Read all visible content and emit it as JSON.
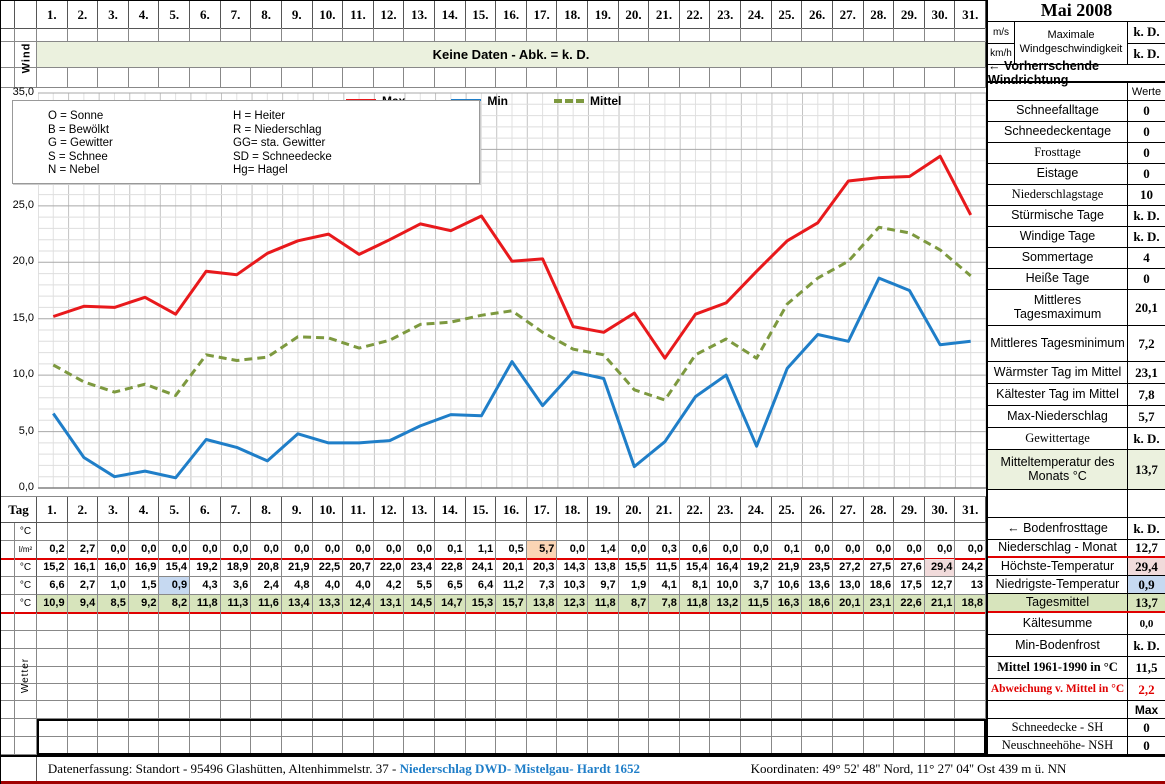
{
  "title": "Mai 2008",
  "days": [
    "1.",
    "2.",
    "3.",
    "4.",
    "5.",
    "6.",
    "7.",
    "8.",
    "9.",
    "10.",
    "11.",
    "12.",
    "13.",
    "14.",
    "15.",
    "16.",
    "17.",
    "18.",
    "19.",
    "20.",
    "21.",
    "22.",
    "23.",
    "24.",
    "25.",
    "26.",
    "27.",
    "28.",
    "29.",
    "30.",
    "31."
  ],
  "wind": {
    "row_label": "Wind",
    "banner": "Keine Daten - Abk. = k. D.",
    "unit_ms": "m/s",
    "unit_kmh": "km/h",
    "max_label": "Maximale Windgeschwindigkeit",
    "max_ms": "k. D.",
    "max_kmh": "k. D.",
    "direction_label": "← Vorherrschende Windrichtung"
  },
  "chart": {
    "y_ticks": [
      "35,0",
      "30,0",
      "25,0",
      "20,0",
      "15,0",
      "10,0",
      "5,0",
      "0,0"
    ],
    "weather_legend": [
      "O = Sonne",
      "H = Heiter",
      "B = Bewölkt",
      "R = Niederschlag",
      "G = Gewitter",
      "GG= sta. Gewitter",
      "S = Schnee",
      "SD = Schneedecke",
      "N = Nebel",
      "Hg= Hagel"
    ]
  },
  "chart_data": {
    "type": "line",
    "x": [
      1,
      2,
      3,
      4,
      5,
      6,
      7,
      8,
      9,
      10,
      11,
      12,
      13,
      14,
      15,
      16,
      17,
      18,
      19,
      20,
      21,
      22,
      23,
      24,
      25,
      26,
      27,
      28,
      29,
      30,
      31
    ],
    "ylim": [
      0,
      35
    ],
    "xlabel": "Tag",
    "ylabel": "°C",
    "grid": true,
    "legend_position": "top",
    "series": [
      {
        "name": "Max",
        "color": "#e8191c",
        "dash": false,
        "values": [
          15.2,
          16.1,
          16.0,
          16.9,
          15.4,
          19.2,
          18.9,
          20.8,
          21.9,
          22.5,
          20.7,
          22.0,
          23.4,
          22.8,
          24.1,
          20.1,
          20.3,
          14.3,
          13.8,
          15.5,
          11.5,
          15.4,
          16.4,
          19.2,
          21.9,
          23.5,
          27.2,
          27.5,
          27.6,
          29.4,
          24.2
        ]
      },
      {
        "name": "Min",
        "color": "#1f7ec8",
        "dash": false,
        "values": [
          6.6,
          2.7,
          1.0,
          1.5,
          0.9,
          4.3,
          3.6,
          2.4,
          4.8,
          4.0,
          4.0,
          4.2,
          5.5,
          6.5,
          6.4,
          11.2,
          7.3,
          10.3,
          9.7,
          1.9,
          4.1,
          8.1,
          10.0,
          3.7,
          10.6,
          13.6,
          13.0,
          18.6,
          17.5,
          12.7,
          13.0
        ]
      },
      {
        "name": "Mittel",
        "color": "#7d993f",
        "dash": true,
        "values": [
          10.9,
          9.4,
          8.5,
          9.2,
          8.2,
          11.8,
          11.3,
          11.6,
          13.4,
          13.3,
          12.4,
          13.1,
          14.5,
          14.7,
          15.3,
          15.7,
          13.8,
          12.3,
          11.8,
          8.7,
          7.8,
          11.8,
          13.2,
          11.5,
          16.3,
          18.6,
          20.1,
          23.1,
          22.6,
          21.1,
          18.8
        ]
      },
      {
        "name": "Niederschlag l/m²",
        "color": null,
        "dash": false,
        "chart_hidden": true,
        "values": [
          0.2,
          2.7,
          0,
          0,
          0,
          0,
          0,
          0,
          0,
          0,
          0,
          0,
          0,
          0.1,
          1.1,
          0.5,
          5.7,
          0,
          1.4,
          0,
          0.3,
          0.6,
          0,
          0,
          0.1,
          0,
          0,
          0,
          0,
          0,
          0
        ]
      }
    ]
  },
  "table": {
    "tag_label": "Tag",
    "wetter_label": "Wetter",
    "rows": [
      {
        "label": "°C",
        "values": [
          "",
          "",
          "",
          "",
          "",
          "",
          "",
          "",
          "",
          "",
          "",
          "",
          "",
          "",
          "",
          "",
          "",
          "",
          "",
          "",
          "",
          "",
          "",
          "",
          "",
          "",
          "",
          "",
          "",
          "",
          ""
        ]
      },
      {
        "label": "l/m²",
        "redline": true,
        "values": [
          "0,2",
          "2,7",
          "0,0",
          "0,0",
          "0,0",
          "0,0",
          "0,0",
          "0,0",
          "0,0",
          "0,0",
          "0,0",
          "0,0",
          "0,0",
          "0,1",
          "1,1",
          "0,5",
          "5,7",
          "0,0",
          "1,4",
          "0,0",
          "0,3",
          "0,6",
          "0,0",
          "0,0",
          "0,1",
          "0,0",
          "0,0",
          "0,0",
          "0,0",
          "0,0",
          "0,0"
        ],
        "highlight": {
          "16": "#fbd5b5"
        }
      },
      {
        "label": "°C",
        "values": [
          "15,2",
          "16,1",
          "16,0",
          "16,9",
          "15,4",
          "19,2",
          "18,9",
          "20,8",
          "21,9",
          "22,5",
          "20,7",
          "22,0",
          "23,4",
          "22,8",
          "24,1",
          "20,1",
          "20,3",
          "14,3",
          "13,8",
          "15,5",
          "11,5",
          "15,4",
          "16,4",
          "19,2",
          "21,9",
          "23,5",
          "27,2",
          "27,5",
          "27,6",
          "29,4",
          "24,2"
        ],
        "highlight": {
          "29": "#f1dbdb"
        }
      },
      {
        "label": "°C",
        "values": [
          "6,6",
          "2,7",
          "1,0",
          "1,5",
          "0,9",
          "4,3",
          "3,6",
          "2,4",
          "4,8",
          "4,0",
          "4,0",
          "4,2",
          "5,5",
          "6,5",
          "6,4",
          "11,2",
          "7,3",
          "10,3",
          "9,7",
          "1,9",
          "4,1",
          "8,1",
          "10,0",
          "3,7",
          "10,6",
          "13,6",
          "13,0",
          "18,6",
          "17,5",
          "12,7",
          "13"
        ],
        "highlight": {
          "4": "#c6d9f1"
        }
      },
      {
        "label": "°C",
        "redline": true,
        "rowbg": "#d7e4bc",
        "values": [
          "10,9",
          "9,4",
          "8,5",
          "9,2",
          "8,2",
          "11,8",
          "11,3",
          "11,6",
          "13,4",
          "13,3",
          "12,4",
          "13,1",
          "14,5",
          "14,7",
          "15,3",
          "15,7",
          "13,8",
          "12,3",
          "11,8",
          "8,7",
          "7,8",
          "11,8",
          "13,2",
          "11,5",
          "16,3",
          "18,6",
          "20,1",
          "23,1",
          "22,6",
          "21,1",
          "18,8"
        ]
      }
    ]
  },
  "sidebar": {
    "werte_header": "Werte",
    "rows": [
      {
        "label": "Schneefalltage",
        "value": "0"
      },
      {
        "label": "Schneedeckentage",
        "value": "0"
      },
      {
        "label": "Frosttage",
        "value": "0",
        "serif": true
      },
      {
        "label": "Eistage",
        "value": "0"
      },
      {
        "label": "Niederschlagstage",
        "value": "10",
        "serif": true
      },
      {
        "label": "Stürmische Tage",
        "value": "k. D."
      },
      {
        "label": "Windige Tage",
        "value": "k. D."
      },
      {
        "label": "Sommertage",
        "value": "4"
      },
      {
        "label": "Heiße Tage",
        "value": "0"
      },
      {
        "label": "Mittleres Tagesmaximum",
        "value": "20,1",
        "tall": true
      },
      {
        "label": "Mittleres Tagesminimum",
        "value": "7,2",
        "tall": true
      },
      {
        "label": "Wärmster Tag im Mittel",
        "value": "23,1"
      },
      {
        "label": "Kältester Tag im Mittel",
        "value": "7,8"
      },
      {
        "label": "Max-Niederschlag",
        "value": "5,7"
      },
      {
        "label": "Gewittertage",
        "value": "k. D.",
        "serif": true
      },
      {
        "label": "Mitteltemperatur des Monats °C",
        "value": "13,7",
        "tall2": true,
        "labbg": "#ebf1de",
        "valbg": "#ebf1de"
      }
    ],
    "rows2": [
      {
        "label": "",
        "value": "",
        "h": 28
      },
      {
        "label": "← Bodenfrosttage",
        "value": "k. D.",
        "h": 22
      },
      {
        "label": "Niederschlag - Monat",
        "value": "12,7",
        "h": 18,
        "redline": true
      },
      {
        "label": "Höchste-Temperatur",
        "value": "29,4",
        "h": 18,
        "valbg": "#f1dbdb"
      },
      {
        "label": "Niedrigste-Temperatur",
        "value": "0,9",
        "h": 18,
        "valbg": "#c6d9f1"
      },
      {
        "label": "Tagesmittel",
        "value": "13,7",
        "h": 19,
        "labbg": "#d7e4bc",
        "valbg": "#d7e4bc",
        "redline": true
      },
      {
        "label": "Kältesumme",
        "value": "0,0",
        "h": 22,
        "smallval": true
      },
      {
        "label": "Min-Bodenfrost",
        "value": "k. D.",
        "h": 22
      },
      {
        "label": "Mittel 1961-1990 in °C",
        "value": "11,5",
        "h": 22,
        "boldlab": true,
        "serif": true
      },
      {
        "label": "Abweichung v. Mittel in °C",
        "value": "2,2",
        "h": 22,
        "red": true,
        "serif": true
      },
      {
        "label": "",
        "value": "Max",
        "h": 18,
        "boldval_sans": true
      },
      {
        "label": "Schneedecke -  SH",
        "value": "0",
        "h": 18,
        "serif": true
      },
      {
        "label": "Neuschneehöhe- NSH",
        "value": "0",
        "h": 18,
        "serif": true
      }
    ]
  },
  "footer": {
    "left_plain": "Datenerfassung:  Standort -  95496  Glashütten, Altenhimmelstr. 37 - ",
    "left_link": "Niederschlag DWD- Mistelgau- Hardt 1652",
    "right": "Koordinaten:  49° 52' 48'' Nord,   11° 27' 04'' Ost   439 m ü. NN"
  },
  "colors": {
    "band_green": "#ebf1de",
    "row_green": "#d7e4bc",
    "hl_orange": "#fbd5b5",
    "hl_pink": "#f1dbdb",
    "hl_blue": "#c6d9f1",
    "series_max": "#e8191c",
    "series_min": "#1f7ec8",
    "series_mittel": "#7d993f",
    "red_rule": "#e00000",
    "link_blue": "#1f7ec8"
  }
}
